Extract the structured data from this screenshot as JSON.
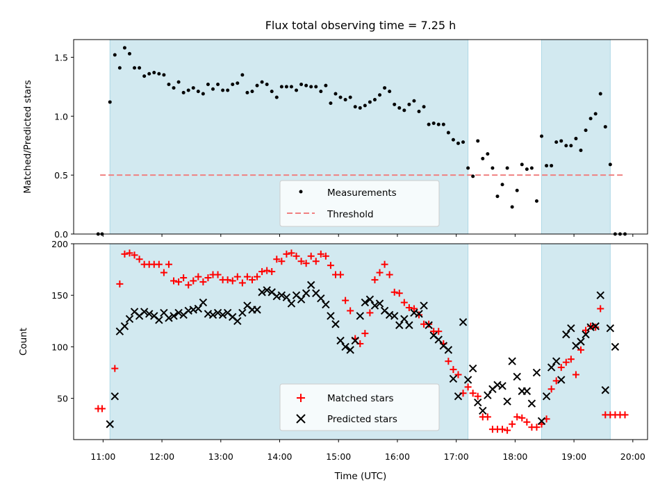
{
  "chart_data": [
    {
      "type": "scatter",
      "title": "Flux total observing time = 7.25 h",
      "xlabel": "",
      "ylabel": "Matched/Predicted stars",
      "xlim_hours": [
        10.5,
        20.25
      ],
      "ylim": [
        0,
        1.65
      ],
      "yticks": [
        0.0,
        0.5,
        1.0,
        1.5
      ],
      "ytick_labels": [
        "0.0",
        "0.5",
        "1.0",
        "1.5"
      ],
      "grid": false,
      "legend_location": "lower center",
      "observing_windows": [
        [
          "11:07",
          "17:12"
        ],
        [
          "18:27",
          "19:37"
        ]
      ],
      "colors": {
        "window": "#d2e9f0",
        "window_edge": "#add8e6",
        "points": "#000000",
        "threshold": "#f08080"
      },
      "threshold": {
        "name": "Threshold",
        "value": 0.5,
        "x_range": [
          "10:57",
          "19:50"
        ]
      },
      "series": [
        {
          "name": "Measurements",
          "time": [
            "10:55",
            "10:59",
            "11:07",
            "11:12",
            "11:17",
            "11:22",
            "11:27",
            "11:32",
            "11:37",
            "11:42",
            "11:47",
            "11:52",
            "11:57",
            "12:02",
            "12:07",
            "12:12",
            "12:17",
            "12:22",
            "12:27",
            "12:32",
            "12:37",
            "12:42",
            "12:47",
            "12:52",
            "12:57",
            "13:02",
            "13:07",
            "13:12",
            "13:17",
            "13:22",
            "13:27",
            "13:32",
            "13:37",
            "13:42",
            "13:47",
            "13:52",
            "13:57",
            "14:02",
            "14:07",
            "14:12",
            "14:17",
            "14:22",
            "14:27",
            "14:32",
            "14:37",
            "14:42",
            "14:47",
            "14:52",
            "14:57",
            "15:02",
            "15:07",
            "15:12",
            "15:17",
            "15:22",
            "15:27",
            "15:32",
            "15:37",
            "15:42",
            "15:47",
            "15:52",
            "15:57",
            "16:02",
            "16:07",
            "16:12",
            "16:17",
            "16:22",
            "16:27",
            "16:32",
            "16:37",
            "16:42",
            "16:47",
            "16:52",
            "16:57",
            "17:02",
            "17:07",
            "17:12",
            "17:17",
            "17:22",
            "17:27",
            "17:32",
            "17:37",
            "17:42",
            "17:47",
            "17:52",
            "17:57",
            "18:02",
            "18:07",
            "18:12",
            "18:17",
            "18:22",
            "18:27",
            "18:32",
            "18:37",
            "18:42",
            "18:47",
            "18:52",
            "18:57",
            "19:02",
            "19:07",
            "19:12",
            "19:17",
            "19:22",
            "19:27",
            "19:32",
            "19:37",
            "19:42",
            "19:47",
            "19:52"
          ],
          "values": [
            0.0,
            0.0,
            1.12,
            1.52,
            1.41,
            1.58,
            1.53,
            1.41,
            1.41,
            1.34,
            1.36,
            1.37,
            1.36,
            1.35,
            1.27,
            1.24,
            1.29,
            1.2,
            1.22,
            1.24,
            1.21,
            1.19,
            1.27,
            1.23,
            1.27,
            1.22,
            1.22,
            1.27,
            1.28,
            1.35,
            1.2,
            1.21,
            1.26,
            1.29,
            1.27,
            1.21,
            1.16,
            1.25,
            1.25,
            1.25,
            1.22,
            1.27,
            1.26,
            1.25,
            1.25,
            1.21,
            1.26,
            1.11,
            1.19,
            1.16,
            1.14,
            1.16,
            1.08,
            1.07,
            1.09,
            1.12,
            1.14,
            1.18,
            1.24,
            1.21,
            1.1,
            1.07,
            1.05,
            1.1,
            1.13,
            1.04,
            1.08,
            0.93,
            0.94,
            0.93,
            0.93,
            0.86,
            0.8,
            0.77,
            0.78,
            0.56,
            0.49,
            0.79,
            0.64,
            0.68,
            0.56,
            0.32,
            0.42,
            0.56,
            0.23,
            0.37,
            0.59,
            0.55,
            0.56,
            0.28,
            0.83,
            0.58,
            0.58,
            0.78,
            0.79,
            0.75,
            0.75,
            0.81,
            0.71,
            0.88,
            0.98,
            1.02,
            1.19,
            0.91,
            0.59,
            0.0,
            0.0,
            0.0
          ]
        }
      ],
      "legend": [
        "Measurements",
        "Threshold"
      ]
    },
    {
      "type": "scatter",
      "title": "",
      "xlabel": "Time (UTC)",
      "ylabel": "Count",
      "xlim_hours": [
        10.5,
        20.25
      ],
      "ylim": [
        10,
        200
      ],
      "yticks": [
        50,
        100,
        150,
        200
      ],
      "ytick_labels": [
        "50",
        "100",
        "150",
        "200"
      ],
      "xticks": [
        "11:00",
        "12:00",
        "13:00",
        "14:00",
        "15:00",
        "16:00",
        "17:00",
        "18:00",
        "19:00",
        "20:00"
      ],
      "grid": false,
      "legend_location": "lower center",
      "observing_windows": [
        [
          "11:07",
          "17:12"
        ],
        [
          "18:27",
          "19:37"
        ]
      ],
      "colors": {
        "window": "#d2e9f0",
        "matched": "#ff0000",
        "predicted": "#000000"
      },
      "series": [
        {
          "name": "Matched stars",
          "marker": "+",
          "time": [
            "10:55",
            "10:59",
            "11:12",
            "11:17",
            "11:22",
            "11:27",
            "11:32",
            "11:37",
            "11:42",
            "11:47",
            "11:52",
            "11:57",
            "12:02",
            "12:07",
            "12:12",
            "12:17",
            "12:22",
            "12:27",
            "12:32",
            "12:37",
            "12:42",
            "12:47",
            "12:52",
            "12:57",
            "13:02",
            "13:07",
            "13:12",
            "13:17",
            "13:22",
            "13:27",
            "13:32",
            "13:37",
            "13:42",
            "13:47",
            "13:52",
            "13:57",
            "14:02",
            "14:07",
            "14:12",
            "14:17",
            "14:22",
            "14:27",
            "14:32",
            "14:37",
            "14:42",
            "14:47",
            "14:52",
            "14:57",
            "15:02",
            "15:07",
            "15:12",
            "15:17",
            "15:22",
            "15:27",
            "15:32",
            "15:37",
            "15:42",
            "15:47",
            "15:52",
            "15:57",
            "16:02",
            "16:07",
            "16:12",
            "16:17",
            "16:22",
            "16:27",
            "16:32",
            "16:37",
            "16:42",
            "16:47",
            "16:52",
            "16:57",
            "17:02",
            "17:07",
            "17:12",
            "17:17",
            "17:22",
            "17:27",
            "17:32",
            "17:37",
            "17:42",
            "17:47",
            "17:52",
            "17:57",
            "18:02",
            "18:07",
            "18:12",
            "18:17",
            "18:22",
            "18:27",
            "18:32",
            "18:37",
            "18:42",
            "18:47",
            "18:52",
            "18:57",
            "19:02",
            "19:07",
            "19:12",
            "19:17",
            "19:22",
            "19:27",
            "19:32",
            "19:37",
            "19:42",
            "19:47",
            "19:52"
          ],
          "values": [
            40,
            40,
            79,
            161,
            190,
            191,
            189,
            185,
            180,
            180,
            180,
            180,
            172,
            180,
            164,
            163,
            167,
            160,
            164,
            168,
            163,
            167,
            170,
            170,
            165,
            165,
            164,
            168,
            162,
            168,
            165,
            168,
            173,
            174,
            173,
            185,
            183,
            190,
            191,
            188,
            183,
            181,
            188,
            183,
            190,
            188,
            179,
            170,
            170,
            145,
            135,
            108,
            103,
            113,
            133,
            165,
            172,
            180,
            170,
            153,
            152,
            143,
            138,
            137,
            131,
            122,
            122,
            115,
            115,
            103,
            86,
            78,
            73,
            55,
            61,
            55,
            52,
            32,
            32,
            20,
            20,
            20,
            19,
            25,
            32,
            31,
            27,
            22,
            22,
            25,
            30,
            59,
            67,
            80,
            85,
            88,
            73,
            97,
            116,
            120,
            119,
            137,
            34,
            34,
            34,
            34,
            34
          ]
        },
        {
          "name": "Predicted stars",
          "marker": "x",
          "time": [
            "11:07",
            "11:12",
            "11:17",
            "11:22",
            "11:27",
            "11:32",
            "11:37",
            "11:42",
            "11:47",
            "11:52",
            "11:57",
            "12:02",
            "12:07",
            "12:12",
            "12:17",
            "12:22",
            "12:27",
            "12:32",
            "12:37",
            "12:42",
            "12:47",
            "12:52",
            "12:57",
            "13:02",
            "13:07",
            "13:12",
            "13:17",
            "13:22",
            "13:27",
            "13:32",
            "13:37",
            "13:42",
            "13:47",
            "13:52",
            "13:57",
            "14:02",
            "14:07",
            "14:12",
            "14:17",
            "14:22",
            "14:27",
            "14:32",
            "14:37",
            "14:42",
            "14:47",
            "14:52",
            "14:57",
            "15:02",
            "15:07",
            "15:12",
            "15:17",
            "15:22",
            "15:27",
            "15:32",
            "15:37",
            "15:42",
            "15:47",
            "15:52",
            "15:57",
            "16:02",
            "16:07",
            "16:12",
            "16:17",
            "16:22",
            "16:27",
            "16:32",
            "16:37",
            "16:42",
            "16:47",
            "16:52",
            "16:57",
            "17:02",
            "17:07",
            "17:12",
            "17:17",
            "17:22",
            "17:27",
            "17:32",
            "17:37",
            "17:42",
            "17:47",
            "17:52",
            "17:57",
            "18:02",
            "18:07",
            "18:12",
            "18:17",
            "18:22",
            "18:27",
            "18:32",
            "18:37",
            "18:42",
            "18:47",
            "18:52",
            "18:57",
            "19:02",
            "19:07",
            "19:12",
            "19:17",
            "19:22",
            "19:27",
            "19:32",
            "19:37",
            "19:42"
          ],
          "values": [
            25,
            52,
            115,
            120,
            127,
            134,
            130,
            134,
            132,
            130,
            126,
            133,
            128,
            130,
            133,
            131,
            135,
            136,
            137,
            143,
            132,
            131,
            133,
            131,
            133,
            129,
            125,
            133,
            140,
            136,
            136,
            153,
            155,
            153,
            149,
            150,
            148,
            142,
            150,
            146,
            152,
            160,
            152,
            147,
            141,
            130,
            122,
            106,
            100,
            97,
            106,
            130,
            143,
            146,
            140,
            142,
            135,
            131,
            130,
            121,
            127,
            121,
            133,
            132,
            140,
            121,
            111,
            107,
            101,
            97,
            69,
            52,
            124,
            68,
            79,
            46,
            38,
            53,
            59,
            63,
            62,
            47,
            86,
            71,
            57,
            57,
            45,
            75,
            28,
            52,
            80,
            86,
            68,
            112,
            118,
            101,
            105,
            112,
            119,
            120,
            150,
            58,
            118,
            100
          ]
        }
      ],
      "legend": [
        "Matched stars",
        "Predicted stars"
      ]
    }
  ]
}
